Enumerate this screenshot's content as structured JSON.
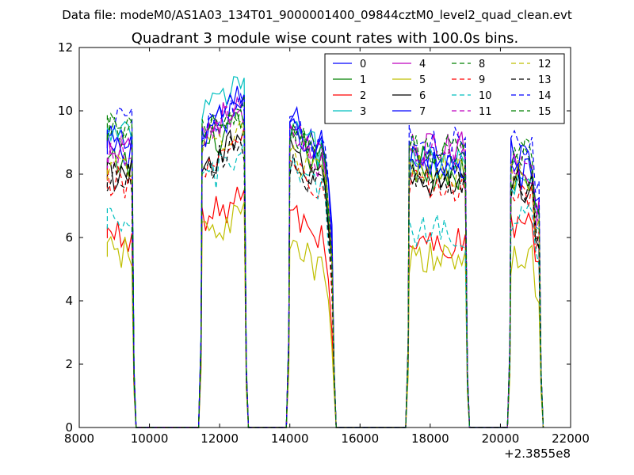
{
  "chart_data": {
    "type": "line",
    "suptitle": "Data file: modeM0/AS1A03_134T01_9000001400_09844cztM0_level2_quad_clean.evt",
    "title": "Quadrant 3 module wise count rates with 100.0s bins.",
    "xlabel": "",
    "ylabel": "",
    "x_offset_label": "+2.3855e8",
    "xlim": [
      8000,
      22000
    ],
    "ylim": [
      0,
      12
    ],
    "xticks": [
      8000,
      10000,
      12000,
      14000,
      16000,
      18000,
      20000,
      22000
    ],
    "yticks": [
      0,
      2,
      4,
      6,
      8,
      10,
      12
    ],
    "legend_location": "top-right",
    "segments": [
      {
        "start": 8800,
        "end": 9500
      },
      {
        "start": 11500,
        "end": 12700
      },
      {
        "start": 14000,
        "end": 15200
      },
      {
        "start": 17400,
        "end": 19000
      },
      {
        "start": 20300,
        "end": 21100
      }
    ],
    "series": [
      {
        "name": "0",
        "color": "#0000ff",
        "dash": "solid",
        "levels": [
          9.0,
          9.6,
          9.8,
          8.6,
          8.6
        ]
      },
      {
        "name": "1",
        "color": "#008000",
        "dash": "solid",
        "levels": [
          8.3,
          8.8,
          9.1,
          8.0,
          7.8
        ]
      },
      {
        "name": "2",
        "color": "#ff0000",
        "dash": "solid",
        "levels": [
          6.1,
          6.5,
          6.8,
          5.8,
          6.4
        ]
      },
      {
        "name": "3",
        "color": "#00bfbf",
        "dash": "solid",
        "levels": [
          9.2,
          10.0,
          9.5,
          8.4,
          7.9
        ]
      },
      {
        "name": "4",
        "color": "#bf00bf",
        "dash": "solid",
        "levels": [
          9.0,
          9.4,
          9.3,
          8.8,
          8.2
        ]
      },
      {
        "name": "5",
        "color": "#bfbf00",
        "dash": "solid",
        "levels": [
          5.5,
          6.0,
          5.8,
          5.3,
          5.4
        ]
      },
      {
        "name": "6",
        "color": "#000000",
        "dash": "solid",
        "levels": [
          8.0,
          8.3,
          8.7,
          7.8,
          7.6
        ]
      },
      {
        "name": "7",
        "color": "#0000ff",
        "dash": "solid",
        "levels": [
          8.8,
          9.3,
          9.6,
          8.4,
          8.0
        ]
      },
      {
        "name": "8",
        "color": "#008000",
        "dash": "dashed",
        "levels": [
          9.4,
          9.2,
          9.4,
          8.8,
          8.5
        ]
      },
      {
        "name": "9",
        "color": "#ff0000",
        "dash": "dashed",
        "levels": [
          7.7,
          8.2,
          8.2,
          7.6,
          7.3
        ]
      },
      {
        "name": "10",
        "color": "#00bfbf",
        "dash": "dashed",
        "levels": [
          6.4,
          7.8,
          8.3,
          6.2,
          6.7
        ]
      },
      {
        "name": "11",
        "color": "#bf00bf",
        "dash": "dashed",
        "levels": [
          8.7,
          9.2,
          9.1,
          8.8,
          8.4
        ]
      },
      {
        "name": "12",
        "color": "#bfbf00",
        "dash": "dashed",
        "levels": [
          8.3,
          8.8,
          8.7,
          8.1,
          8.0
        ]
      },
      {
        "name": "13",
        "color": "#000000",
        "dash": "dashed",
        "levels": [
          7.9,
          8.1,
          8.4,
          7.8,
          7.5
        ]
      },
      {
        "name": "14",
        "color": "#0000ff",
        "dash": "dashed",
        "levels": [
          9.6,
          9.6,
          9.6,
          9.0,
          9.0
        ]
      },
      {
        "name": "15",
        "color": "#008000",
        "dash": "dashed",
        "levels": [
          9.4,
          9.1,
          9.3,
          8.7,
          8.6
        ]
      }
    ]
  }
}
